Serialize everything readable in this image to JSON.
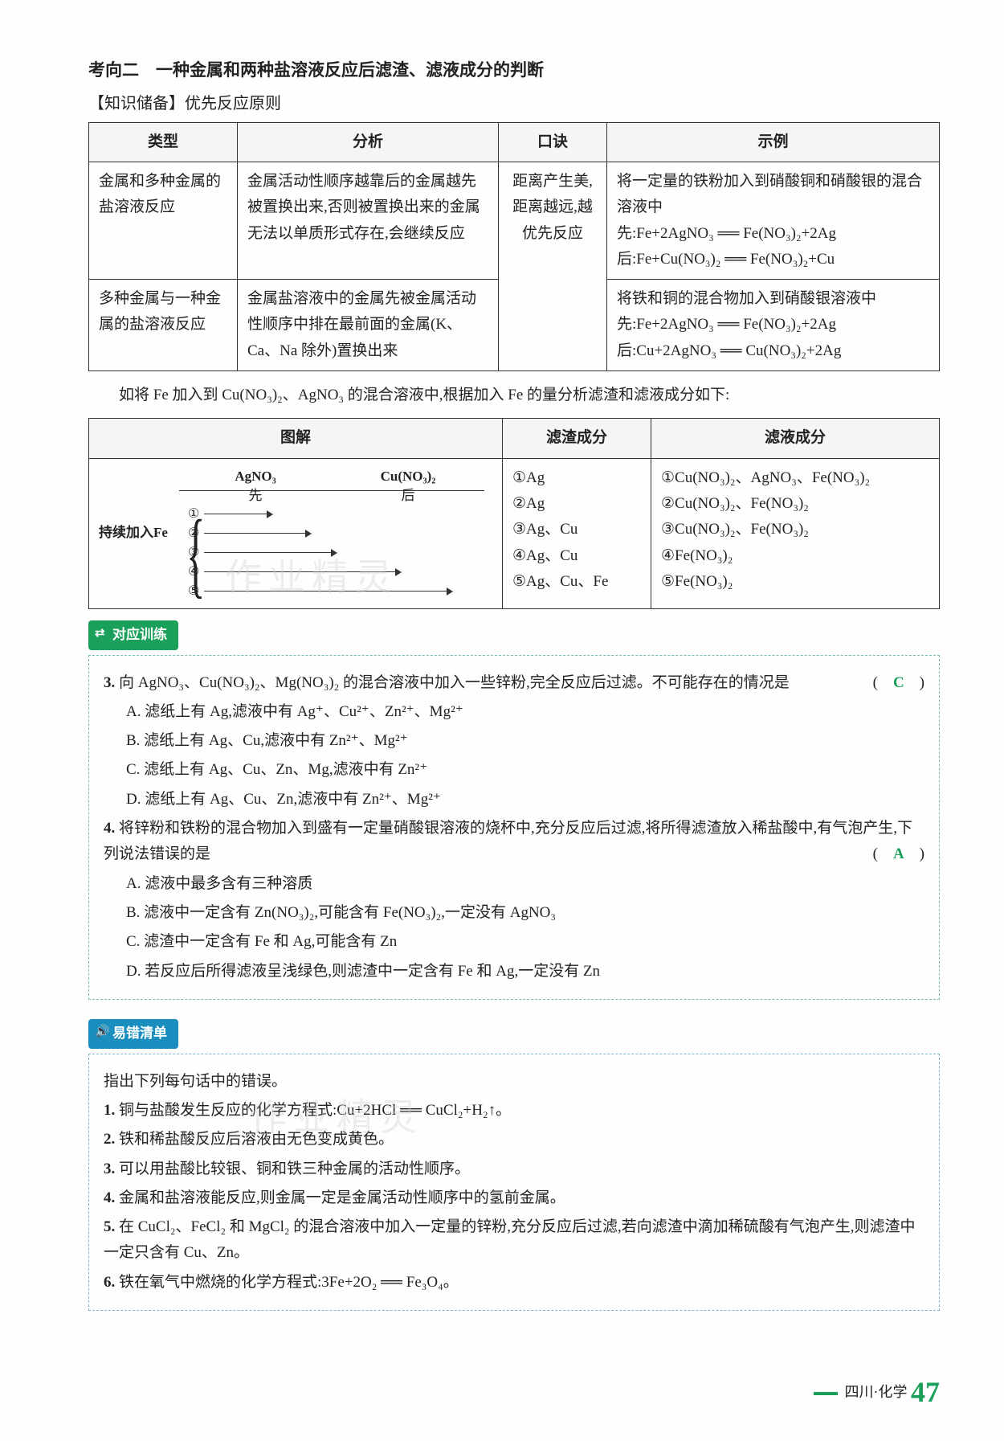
{
  "heading": "考向二　一种金属和两种盐溶液反应后滤渣、滤液成分的判断",
  "subhead": "【知识储备】优先反应原则",
  "table1": {
    "headers": [
      "类型",
      "分析",
      "口诀",
      "示例"
    ],
    "kj_text": "距离产生美,距离越远,越优先反应",
    "rows": [
      {
        "type": "金属和多种金属的盐溶液反应",
        "analysis": "金属活动性顺序越靠后的金属越先被置换出来,否则被置换出来的金属无法以单质形式存在,会继续反应",
        "example_intro": "将一定量的铁粉加入到硝酸铜和硝酸银的混合溶液中",
        "example_l1": "先:Fe+2AgNO₃ ══ Fe(NO₃)₂+2Ag",
        "example_l2": "后:Fe+Cu(NO₃)₂ ══ Fe(NO₃)₂+Cu"
      },
      {
        "type": "多种金属与一种金属的盐溶液反应",
        "analysis": "金属盐溶液中的金属先被金属活动性顺序中排在最前面的金属(K、Ca、Na 除外)置换出来",
        "example_intro": "将铁和铜的混合物加入到硝酸银溶液中",
        "example_l1": "先:Fe+2AgNO₃ ══ Fe(NO₃)₂+2Ag",
        "example_l2": "后:Cu+2AgNO₃ ══ Cu(NO₃)₂+2Ag"
      }
    ]
  },
  "intro": "如将 Fe 加入到 Cu(NO₃)₂、AgNO₃ 的混合溶液中,根据加入 Fe 的量分析滤渣和滤液成分如下:",
  "table2": {
    "headers": [
      "图解",
      "滤渣成分",
      "滤液成分"
    ],
    "diagram": {
      "col1": "AgNO₃",
      "col2": "Cu(NO₃)₂",
      "sub1": "先",
      "sub2": "后",
      "left": "持续加入Fe",
      "nums": [
        "①",
        "②",
        "③",
        "④",
        "⑤"
      ],
      "lengths": [
        25,
        40,
        50,
        75,
        95
      ]
    },
    "lz": [
      "①Ag",
      "②Ag",
      "③Ag、Cu",
      "④Ag、Cu",
      "⑤Ag、Cu、Fe"
    ],
    "ly": [
      "①Cu(NO₃)₂、AgNO₃、Fe(NO₃)₂",
      "②Cu(NO₃)₂、Fe(NO₃)₂",
      "③Cu(NO₃)₂、Fe(NO₃)₂",
      "④Fe(NO₃)₂",
      "⑤Fe(NO₃)₂"
    ]
  },
  "practice": {
    "label": "对应训练",
    "q3": {
      "stem": "向 AgNO₃、Cu(NO₃)₂、Mg(NO₃)₂ 的混合溶液中加入一些锌粉,完全反应后过滤。不可能存在的情况是",
      "ans": "C",
      "opts": [
        "A. 滤纸上有 Ag,滤液中有 Ag⁺、Cu²⁺、Zn²⁺、Mg²⁺",
        "B. 滤纸上有 Ag、Cu,滤液中有 Zn²⁺、Mg²⁺",
        "C. 滤纸上有 Ag、Cu、Zn、Mg,滤液中有 Zn²⁺",
        "D. 滤纸上有 Ag、Cu、Zn,滤液中有 Zn²⁺、Mg²⁺"
      ]
    },
    "q4": {
      "stem": "将锌粉和铁粉的混合物加入到盛有一定量硝酸银溶液的烧杯中,充分反应后过滤,将所得滤渣放入稀盐酸中,有气泡产生,下列说法错误的是",
      "ans": "A",
      "opts": [
        "A. 滤液中最多含有三种溶质",
        "B. 滤液中一定含有 Zn(NO₃)₂,可能含有 Fe(NO₃)₂,一定没有 AgNO₃",
        "C. 滤渣中一定含有 Fe 和 Ag,可能含有 Zn",
        "D. 若反应后所得滤液呈浅绿色,则滤渣中一定含有 Fe 和 Ag,一定没有 Zn"
      ]
    }
  },
  "errors": {
    "label": "易错清单",
    "intro": "指出下列每句话中的错误。",
    "items": [
      "铜与盐酸发生反应的化学方程式:Cu+2HCl ══ CuCl₂+H₂↑。",
      "铁和稀盐酸反应后溶液由无色变成黄色。",
      "可以用盐酸比较银、铜和铁三种金属的活动性顺序。",
      "金属和盐溶液能反应,则金属一定是金属活动性顺序中的氢前金属。",
      "在 CuCl₂、FeCl₂ 和 MgCl₂ 的混合溶液中加入一定量的锌粉,充分反应后过滤,若向滤渣中滴加稀硫酸有气泡产生,则滤渣中一定只含有 Cu、Zn。",
      "铁在氧气中燃烧的化学方程式:3Fe+2O₂ ══ Fe₃O₄。"
    ]
  },
  "footer": {
    "region": "四川·化学",
    "page": "47"
  },
  "watermark": "作业精灵"
}
